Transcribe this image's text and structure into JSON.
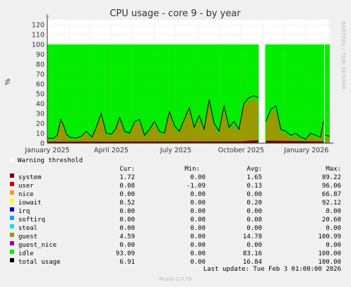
{
  "footer": "Munin 2.0.75",
  "side_label": "RRDTOOL / TOBI OETIKER",
  "last_update": "Last update: Tue Feb  3 01:00:00 2026",
  "warning_label": "Warning threshold",
  "headers": {
    "cur": "Cur:",
    "min": "Min:",
    "avg": "Avg:",
    "max": "Max:"
  },
  "legend": [
    {
      "name": "system",
      "color": "#7a0000",
      "cur": "1.72",
      "min": "0.00",
      "avg": "1.65",
      "max": "89.22"
    },
    {
      "name": "user",
      "color": "#cc0000",
      "cur": "0.08",
      "min": "-1.09",
      "avg": "0.13",
      "max": "96.06"
    },
    {
      "name": "nice",
      "color": "#ff9900",
      "cur": "0.00",
      "min": "0.00",
      "avg": "0.00",
      "max": "66.87"
    },
    {
      "name": "iowait",
      "color": "#ffff00",
      "cur": "0.52",
      "min": "0.00",
      "avg": "0.20",
      "max": "92.12"
    },
    {
      "name": "irq",
      "color": "#0000cc",
      "cur": "0.00",
      "min": "0.00",
      "avg": "0.00",
      "max": "0.00"
    },
    {
      "name": "softirq",
      "color": "#00aaff",
      "cur": "0.00",
      "min": "0.00",
      "avg": "0.08",
      "max": "20.60"
    },
    {
      "name": "steal",
      "color": "#00e5e5",
      "cur": "0.00",
      "min": "0.00",
      "avg": "0.00",
      "max": "0.00"
    },
    {
      "name": "guest",
      "color": "#999900",
      "cur": "4.59",
      "min": "0.00",
      "avg": "14.78",
      "max": "100.99"
    },
    {
      "name": "guest_nice",
      "color": "#990099",
      "cur": "0.00",
      "min": "0.00",
      "avg": "0.00",
      "max": "0.00"
    },
    {
      "name": "idle",
      "color": "#00ee00",
      "cur": "93.09",
      "min": "0.00",
      "avg": "83.16",
      "max": "100.00"
    },
    {
      "name": "total usage",
      "color": "#000000",
      "cur": "6.91",
      "min": "0.00",
      "avg": "16.84",
      "max": "100.00"
    }
  ],
  "chart_data": {
    "type": "area",
    "title": "CPU usage - core 9 - by year",
    "ylabel": "%",
    "ylim": [
      0,
      125
    ],
    "y_ticks": [
      0,
      10,
      20,
      30,
      40,
      50,
      60,
      70,
      80,
      90,
      100,
      110,
      120
    ],
    "x_tick_labels": [
      "January 2025",
      "April 2025",
      "July 2025",
      "October 2025",
      "January 2026"
    ],
    "x_range": [
      "2025-01-01",
      "2026-02-03"
    ],
    "grid": true,
    "stacked": true,
    "gaps": [
      [
        "2025-10-26",
        "2025-11-04"
      ],
      [
        "2026-01-26",
        "2026-01-27"
      ]
    ],
    "total_usage": {
      "x": [
        "2025-01-01",
        "2025-01-10",
        "2025-01-15",
        "2025-01-20",
        "2025-01-24",
        "2025-01-28",
        "2025-02-02",
        "2025-02-10",
        "2025-02-18",
        "2025-02-25",
        "2025-03-05",
        "2025-03-12",
        "2025-03-18",
        "2025-03-25",
        "2025-04-01",
        "2025-04-07",
        "2025-04-13",
        "2025-04-20",
        "2025-04-27",
        "2025-05-04",
        "2025-05-11",
        "2025-05-18",
        "2025-05-25",
        "2025-06-01",
        "2025-06-08",
        "2025-06-15",
        "2025-06-22",
        "2025-06-29",
        "2025-07-06",
        "2025-07-13",
        "2025-07-20",
        "2025-07-27",
        "2025-08-03",
        "2025-08-10",
        "2025-08-17",
        "2025-08-24",
        "2025-08-31",
        "2025-09-07",
        "2025-09-14",
        "2025-09-21",
        "2025-09-28",
        "2025-10-05",
        "2025-10-12",
        "2025-10-19",
        "2025-10-25",
        "2025-11-05",
        "2025-11-12",
        "2025-11-19",
        "2025-11-26",
        "2025-12-03",
        "2025-12-10",
        "2025-12-17",
        "2025-12-24",
        "2025-12-31",
        "2026-01-07",
        "2026-01-14",
        "2026-01-21",
        "2026-01-25",
        "2026-01-28",
        "2026-02-03"
      ],
      "y": [
        5,
        5,
        8,
        24,
        18,
        9,
        6,
        5,
        7,
        12,
        6,
        18,
        30,
        10,
        9,
        14,
        26,
        12,
        10,
        22,
        24,
        8,
        14,
        22,
        12,
        10,
        32,
        18,
        12,
        24,
        36,
        16,
        28,
        14,
        44,
        20,
        12,
        38,
        16,
        22,
        14,
        40,
        46,
        48,
        46,
        22,
        34,
        38,
        14,
        12,
        8,
        10,
        6,
        4,
        10,
        8,
        6,
        22,
        8,
        7
      ]
    },
    "guest": {
      "x": [
        "2025-01-01",
        "2025-01-10",
        "2025-01-15",
        "2025-01-20",
        "2025-01-24",
        "2025-01-28",
        "2025-02-02",
        "2025-02-10",
        "2025-02-18",
        "2025-02-25",
        "2025-03-05",
        "2025-03-12",
        "2025-03-18",
        "2025-03-25",
        "2025-04-01",
        "2025-04-07",
        "2025-04-13",
        "2025-04-20",
        "2025-04-27",
        "2025-05-04",
        "2025-05-11",
        "2025-05-18",
        "2025-05-25",
        "2025-06-01",
        "2025-06-08",
        "2025-06-15",
        "2025-06-22",
        "2025-06-29",
        "2025-07-06",
        "2025-07-13",
        "2025-07-20",
        "2025-07-27",
        "2025-08-03",
        "2025-08-10",
        "2025-08-17",
        "2025-08-24",
        "2025-08-31",
        "2025-09-07",
        "2025-09-14",
        "2025-09-21",
        "2025-09-28",
        "2025-10-05",
        "2025-10-12",
        "2025-10-19",
        "2025-10-25",
        "2025-11-05",
        "2025-11-12",
        "2025-11-19",
        "2025-11-26",
        "2025-12-03",
        "2025-12-10",
        "2025-12-17",
        "2025-12-24",
        "2025-12-31",
        "2026-01-07",
        "2026-01-14",
        "2026-01-21",
        "2026-01-25",
        "2026-01-28",
        "2026-02-03"
      ],
      "y": [
        3,
        3,
        6,
        21,
        16,
        7,
        4,
        3,
        5,
        10,
        4,
        16,
        27,
        8,
        7,
        12,
        23,
        10,
        8,
        19,
        21,
        6,
        12,
        19,
        10,
        8,
        29,
        15,
        10,
        21,
        33,
        13,
        25,
        11,
        41,
        17,
        9,
        35,
        13,
        19,
        11,
        37,
        42,
        44,
        42,
        18,
        30,
        34,
        11,
        9,
        5,
        7,
        4,
        2,
        7,
        5,
        4,
        19,
        5,
        4.6
      ]
    },
    "system": {
      "x": [
        "2025-01-01",
        "2025-04-01",
        "2025-07-01",
        "2025-10-01",
        "2025-10-25",
        "2025-11-05",
        "2026-01-25",
        "2026-02-03"
      ],
      "y": [
        1.5,
        1.6,
        1.7,
        1.8,
        3,
        2.5,
        1.8,
        1.72
      ]
    }
  }
}
